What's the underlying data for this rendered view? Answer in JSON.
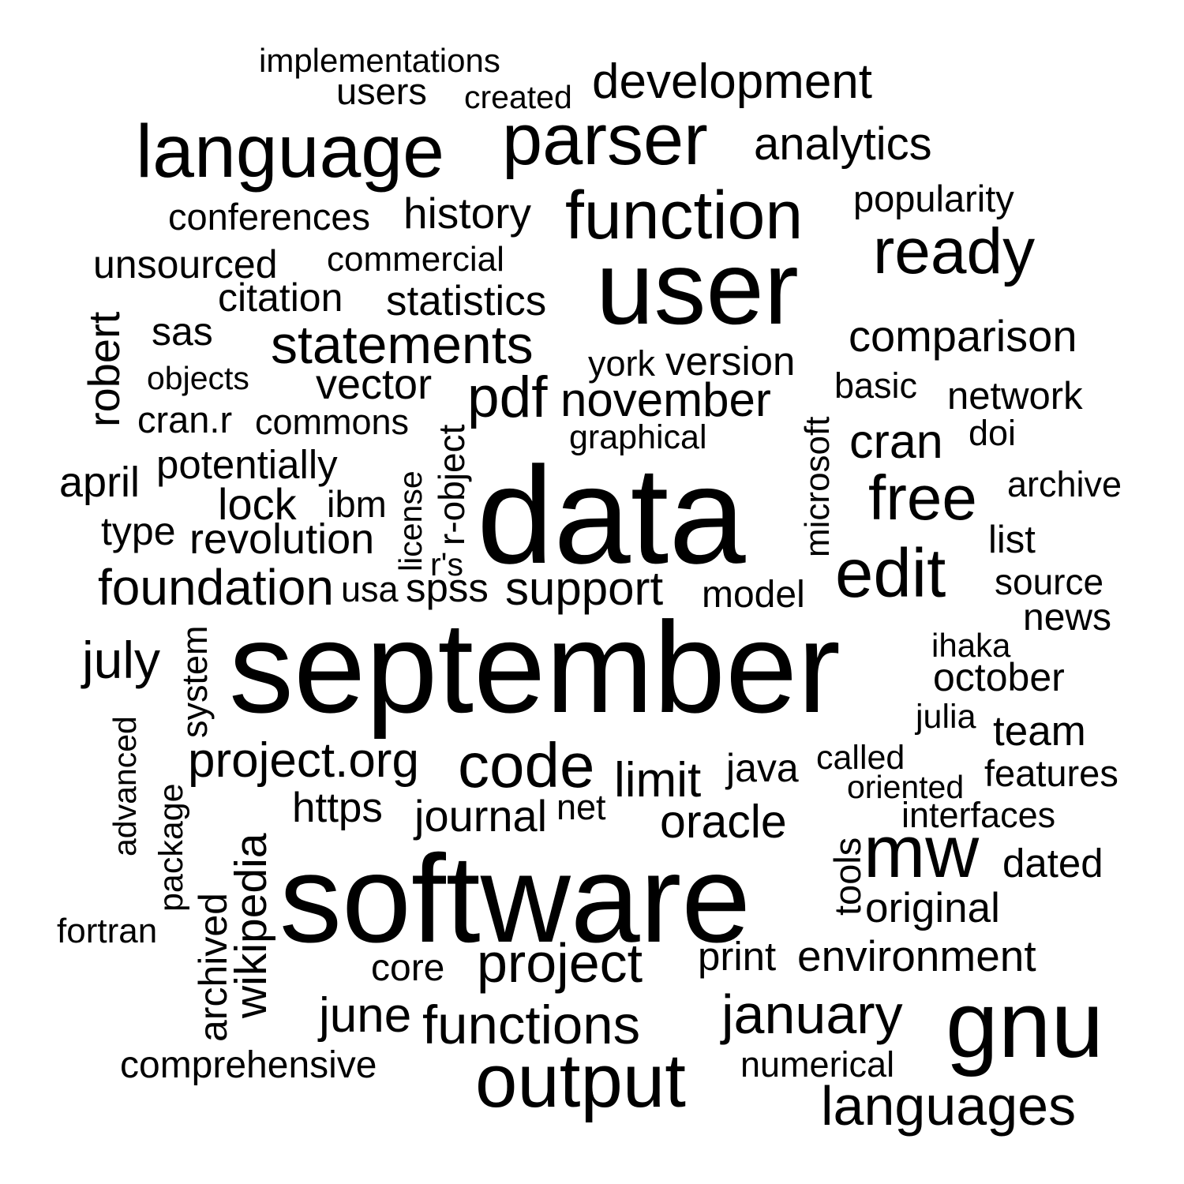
{
  "colors": {
    "background": "#ffffff",
    "text": "#000000"
  },
  "words": {
    "implementations": "implementations",
    "users": "users",
    "created": "created",
    "development": "development",
    "language": "language",
    "parser": "parser",
    "analytics": "analytics",
    "popularity": "popularity",
    "conferences": "conferences",
    "history": "history",
    "function": "function",
    "ready": "ready",
    "unsourced": "unsourced",
    "commercial": "commercial",
    "user": "user",
    "citation": "citation",
    "statistics": "statistics",
    "robert": "robert",
    "sas": "sas",
    "statements": "statements",
    "comparison": "comparison",
    "york": "york",
    "version": "version",
    "objects": "objects",
    "vector": "vector",
    "basic": "basic",
    "pdf": "pdf",
    "november": "november",
    "network": "network",
    "cran_r": "cran.r",
    "commons": "commons",
    "microsoft": "microsoft",
    "graphical": "graphical",
    "doi": "doi",
    "cran": "cran",
    "r_object": "r-object",
    "potentially": "potentially",
    "data": "data",
    "april": "april",
    "license": "license",
    "free": "free",
    "archive": "archive",
    "lock": "lock",
    "ibm": "ibm",
    "type": "type",
    "revolution": "revolution",
    "list": "list",
    "r_s": "r's",
    "edit": "edit",
    "foundation": "foundation",
    "usa": "usa",
    "spss": "spss",
    "support": "support",
    "model": "model",
    "source": "source",
    "news": "news",
    "july": "july",
    "system": "system",
    "september": "september",
    "ihaka": "ihaka",
    "october": "october",
    "advanced": "advanced",
    "julia": "julia",
    "team": "team",
    "project_org": "project.org",
    "code": "code",
    "java": "java",
    "called": "called",
    "package": "package",
    "limit": "limit",
    "features": "features",
    "oriented": "oriented",
    "https": "https",
    "wikipedia": "wikipedia",
    "net": "net",
    "journal": "journal",
    "interfaces": "interfaces",
    "oracle": "oracle",
    "tools": "tools",
    "mw": "mw",
    "dated": "dated",
    "software": "software",
    "original": "original",
    "fortran": "fortran",
    "archived": "archived",
    "print": "print",
    "environment": "environment",
    "core": "core",
    "project": "project",
    "january": "january",
    "gnu": "gnu",
    "june": "june",
    "functions": "functions",
    "comprehensive": "comprehensive",
    "numerical": "numerical",
    "output": "output",
    "languages": "languages"
  }
}
